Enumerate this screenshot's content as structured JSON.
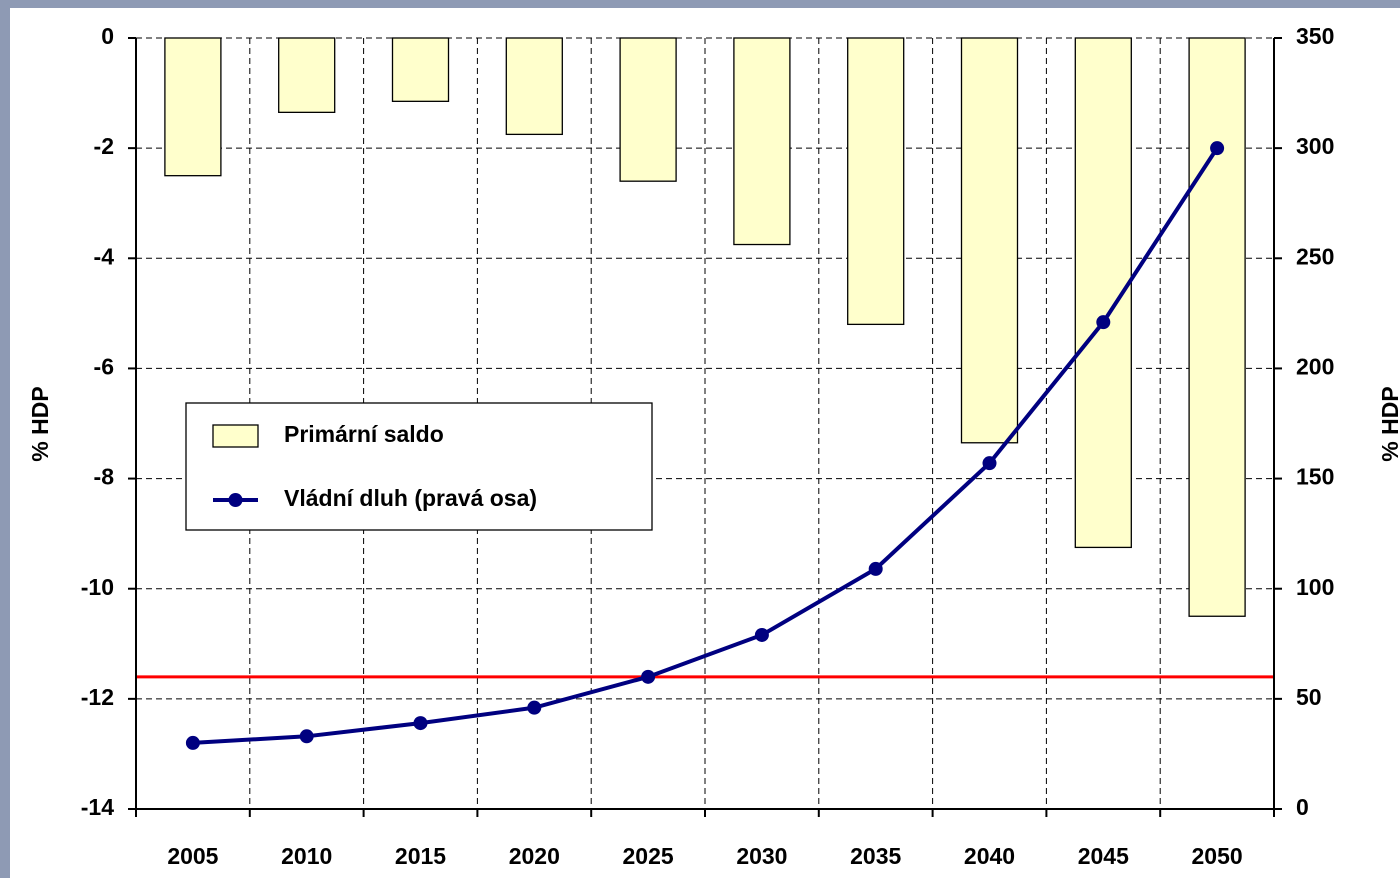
{
  "chart_data": {
    "type": "bar_line",
    "categories": [
      "2005",
      "2010",
      "2015",
      "2020",
      "2025",
      "2030",
      "2035",
      "2040",
      "2045",
      "2050"
    ],
    "series": [
      {
        "name": "Primární saldo",
        "type": "bar",
        "color": "#ffffcc",
        "values": [
          -2.5,
          -1.35,
          -1.15,
          -1.75,
          -2.6,
          -3.75,
          -5.2,
          -7.35,
          -9.25,
          -10.5
        ]
      },
      {
        "name": "Vládní dluh (pravá osa)",
        "type": "line",
        "axis": "y2",
        "color": "#000080",
        "values": [
          30,
          33,
          39,
          46,
          60,
          79,
          109,
          157,
          221,
          300
        ]
      }
    ],
    "ylabel": "% HDP",
    "y2label": "% HDP",
    "ylim": [
      -14,
      0
    ],
    "yticks": [
      -14,
      -12,
      -10,
      -8,
      -6,
      -4,
      -2,
      0
    ],
    "y2lim": [
      0,
      350
    ],
    "y2ticks": [
      0,
      50,
      100,
      150,
      200,
      250,
      300,
      350
    ],
    "reference_line": {
      "value": 60,
      "axis": "y2",
      "color": "#ff0000"
    },
    "grid": true
  }
}
